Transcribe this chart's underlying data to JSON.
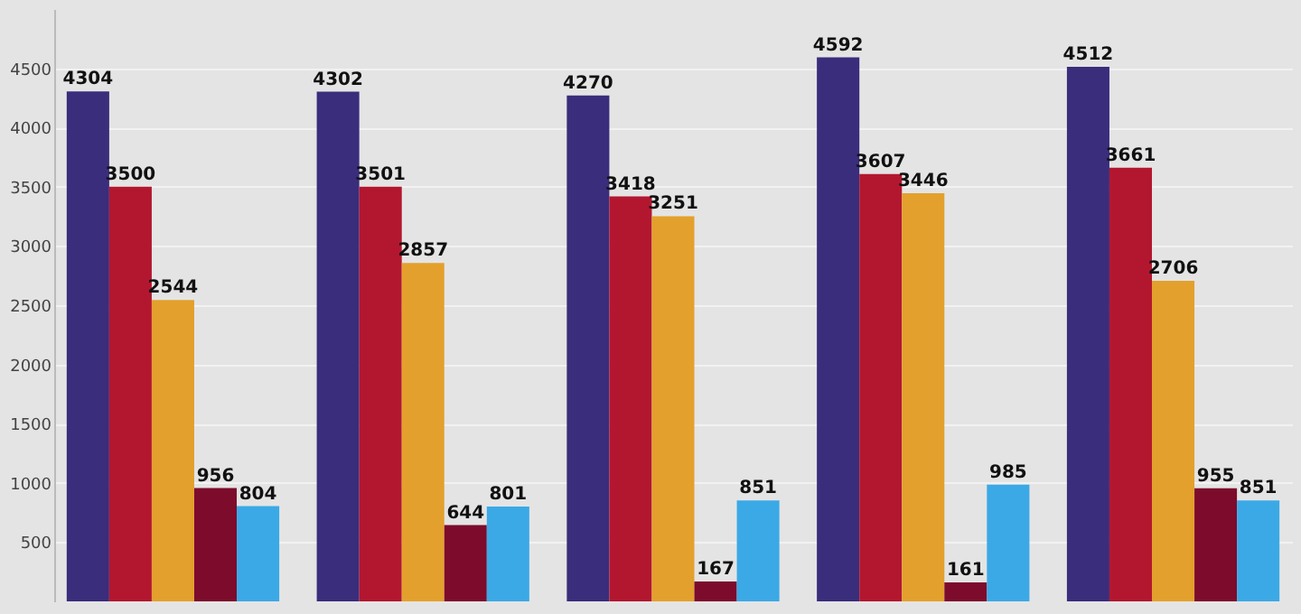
{
  "chart_data": {
    "type": "bar",
    "categories": [
      null,
      null,
      null,
      null,
      null
    ],
    "series": [
      {
        "color": "#3a2d7c",
        "values": [
          4304,
          4302,
          4270,
          4592,
          4512
        ]
      },
      {
        "color": "#b3172f",
        "values": [
          3500,
          3501,
          3418,
          3607,
          3661
        ]
      },
      {
        "color": "#e3a02c",
        "values": [
          2544,
          2857,
          3251,
          3446,
          2706
        ]
      },
      {
        "color": "#7d0b2c",
        "values": [
          956,
          644,
          167,
          161,
          955
        ]
      },
      {
        "color": "#3ba9e6",
        "values": [
          804,
          801,
          851,
          985,
          851
        ]
      }
    ],
    "ylim": [
      0,
      5000
    ],
    "yticks": [
      500,
      1000,
      1500,
      2000,
      2500,
      3000,
      3500,
      4000,
      4500
    ],
    "grid": "y",
    "data_labels": true,
    "legend": false
  }
}
